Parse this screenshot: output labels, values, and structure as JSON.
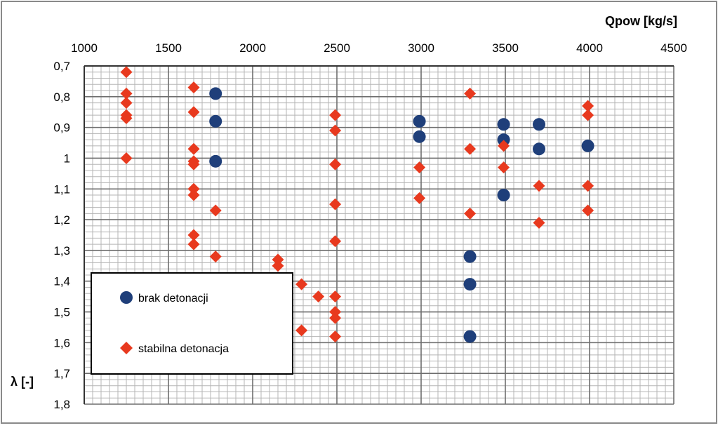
{
  "chart_data": {
    "type": "scatter",
    "xlabel": "Qpow [kg/s]",
    "ylabel": "λ [-]",
    "xlim": [
      1000,
      4500
    ],
    "ylim": [
      0.7,
      1.8
    ],
    "y_axis_reversed": true,
    "x_ticks": [
      1000,
      1500,
      2000,
      2500,
      3000,
      3500,
      4000,
      4500
    ],
    "x_tick_labels": [
      "1000",
      "1500",
      "2000",
      "2500",
      "3000",
      "3500",
      "4000",
      "4500"
    ],
    "y_ticks": [
      0.7,
      0.8,
      0.9,
      1.0,
      1.1,
      1.2,
      1.3,
      1.4,
      1.5,
      1.6,
      1.7,
      1.8
    ],
    "y_tick_labels": [
      "0,7",
      "0,8",
      "0,9",
      "1",
      "1,1",
      "1,2",
      "1,3",
      "1,4",
      "1,5",
      "1,6",
      "1,7",
      "1,8"
    ],
    "grid": true,
    "legend_position": "bottom-left",
    "series": [
      {
        "name": "brak detonacji",
        "marker": "circle",
        "color": "#1f3f7a",
        "points": [
          [
            1780,
            0.79
          ],
          [
            1780,
            0.88
          ],
          [
            1780,
            1.01
          ],
          [
            2990,
            0.88
          ],
          [
            2990,
            0.93
          ],
          [
            3290,
            1.32
          ],
          [
            3290,
            1.41
          ],
          [
            3290,
            1.58
          ],
          [
            3490,
            0.89
          ],
          [
            3490,
            0.94
          ],
          [
            3490,
            1.12
          ],
          [
            3700,
            0.89
          ],
          [
            3700,
            0.97
          ],
          [
            3990,
            0.96
          ]
        ]
      },
      {
        "name": "stabilna detonacja",
        "marker": "diamond",
        "color": "#e8391e",
        "points": [
          [
            1250,
            0.72
          ],
          [
            1250,
            0.79
          ],
          [
            1250,
            0.82
          ],
          [
            1250,
            0.86
          ],
          [
            1250,
            0.87
          ],
          [
            1250,
            1.0
          ],
          [
            1650,
            0.77
          ],
          [
            1650,
            0.85
          ],
          [
            1650,
            0.97
          ],
          [
            1650,
            1.01
          ],
          [
            1650,
            1.02
          ],
          [
            1650,
            1.1
          ],
          [
            1650,
            1.12
          ],
          [
            1650,
            1.25
          ],
          [
            1650,
            1.28
          ],
          [
            1780,
            1.17
          ],
          [
            1780,
            1.32
          ],
          [
            2150,
            1.33
          ],
          [
            2150,
            1.35
          ],
          [
            2290,
            1.41
          ],
          [
            2390,
            1.45
          ],
          [
            2290,
            1.56
          ],
          [
            2490,
            0.86
          ],
          [
            2490,
            0.91
          ],
          [
            2490,
            1.02
          ],
          [
            2490,
            1.15
          ],
          [
            2490,
            1.27
          ],
          [
            2490,
            1.45
          ],
          [
            2490,
            1.5
          ],
          [
            2490,
            1.52
          ],
          [
            2490,
            1.58
          ],
          [
            2990,
            1.03
          ],
          [
            2990,
            1.13
          ],
          [
            3290,
            0.79
          ],
          [
            3290,
            0.97
          ],
          [
            3290,
            1.18
          ],
          [
            3490,
            0.96
          ],
          [
            3490,
            1.03
          ],
          [
            3700,
            1.09
          ],
          [
            3700,
            1.21
          ],
          [
            3990,
            0.83
          ],
          [
            3990,
            0.86
          ],
          [
            3990,
            1.09
          ],
          [
            3990,
            1.17
          ]
        ]
      }
    ]
  }
}
